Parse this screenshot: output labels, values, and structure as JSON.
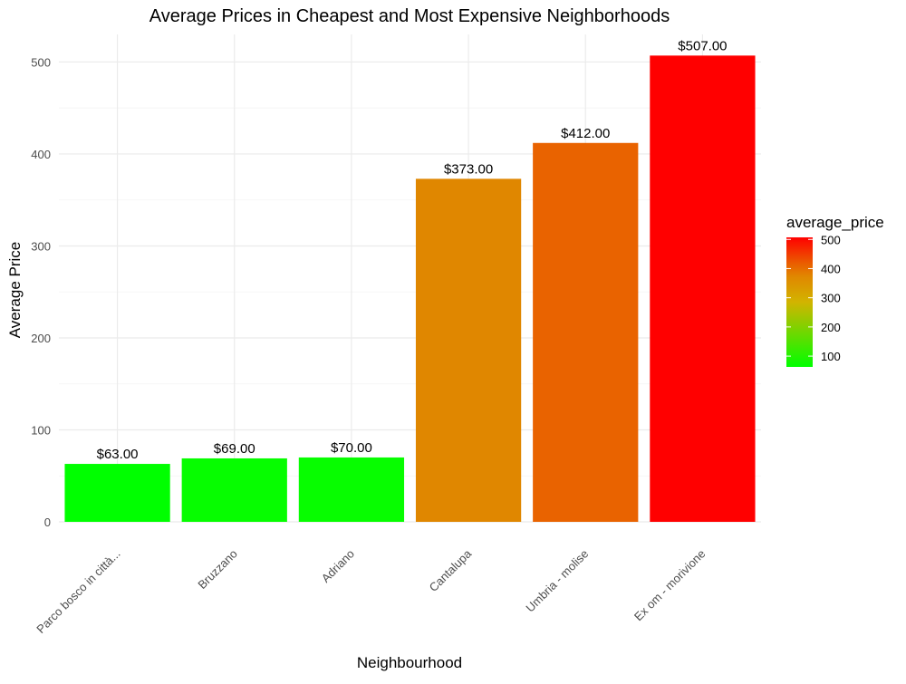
{
  "chart_data": {
    "type": "bar",
    "title": "Average Prices in Cheapest and Most Expensive Neighborhoods",
    "xlabel": "Neighbourhood",
    "ylabel": "Average Price",
    "categories": [
      "Parco bosco in città...",
      "Bruzzano",
      "Adriano",
      "Cantalupa",
      "Umbria - molise",
      "Ex om - morivione"
    ],
    "values": [
      63,
      69,
      70,
      373,
      412,
      507
    ],
    "value_labels": [
      "$63.00",
      "$69.00",
      "$70.00",
      "$373.00",
      "$412.00",
      "$507.00"
    ],
    "ylim": [
      0,
      530
    ],
    "yticks": [
      0,
      100,
      200,
      300,
      400,
      500
    ],
    "ytick_labels": [
      "0",
      "100",
      "200",
      "300",
      "400",
      "500"
    ],
    "grid": true,
    "legend": {
      "title": "average_price",
      "type": "colorbar",
      "position": "right",
      "range": [
        63,
        507
      ],
      "ticks": [
        100,
        200,
        300,
        400,
        500
      ],
      "tick_labels": [
        "100",
        "200",
        "300",
        "400",
        "500"
      ],
      "color_low": "#00FF00",
      "color_high": "#FF0000"
    }
  }
}
